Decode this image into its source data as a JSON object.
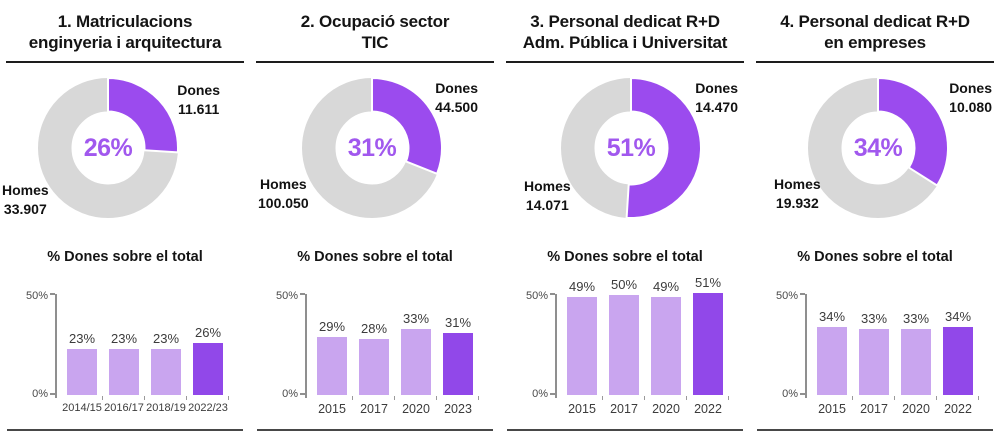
{
  "colors": {
    "donut_dones": "#9b4bee",
    "donut_homes": "#d8d8d8",
    "bar_light": "#c9a5ef",
    "bar_accent": "#9148e9",
    "percent_text": "#a158ee"
  },
  "columns": [
    {
      "title_line1": "1. Matriculacions",
      "title_line2": "enginyeria i arquitectura",
      "donut": {
        "percent": 26,
        "percent_label": "26%",
        "dones_label": "Dones",
        "dones_value": "11.611",
        "homes_label": "Homes",
        "homes_value": "33.907"
      },
      "bar_chart": {
        "title": "% Dones sobre el total",
        "y_max_label": "50%",
        "y_min_label": "0%",
        "categories": [
          "2014/15",
          "2016/17",
          "2018/19",
          "2022/23"
        ],
        "values": [
          23,
          23,
          23,
          26
        ],
        "labels": [
          "23%",
          "23%",
          "23%",
          "26%"
        ]
      }
    },
    {
      "title_line1": "2. Ocupació sector",
      "title_line2": "TIC",
      "donut": {
        "percent": 31,
        "percent_label": "31%",
        "dones_label": "Dones",
        "dones_value": "44.500",
        "homes_label": "Homes",
        "homes_value": "100.050"
      },
      "bar_chart": {
        "title": "% Dones sobre el total",
        "y_max_label": "50%",
        "y_min_label": "0%",
        "categories": [
          "2015",
          "2017",
          "2020",
          "2023"
        ],
        "values": [
          29,
          28,
          33,
          31
        ],
        "labels": [
          "29%",
          "28%",
          "33%",
          "31%"
        ]
      }
    },
    {
      "title_line1": "3. Personal dedicat R+D",
      "title_line2": "Adm. Pública i Universitat",
      "donut": {
        "percent": 51,
        "percent_label": "51%",
        "dones_label": "Dones",
        "dones_value": "14.470",
        "homes_label": "Homes",
        "homes_value": "14.071"
      },
      "bar_chart": {
        "title": "% Dones sobre el total",
        "y_max_label": "50%",
        "y_min_label": "0%",
        "categories": [
          "2015",
          "2017",
          "2020",
          "2022"
        ],
        "values": [
          49,
          50,
          49,
          51
        ],
        "labels": [
          "49%",
          "50%",
          "49%",
          "51%"
        ]
      }
    },
    {
      "title_line1": "4. Personal dedicat R+D",
      "title_line2": "en empreses",
      "donut": {
        "percent": 34,
        "percent_label": "34%",
        "dones_label": "Dones",
        "dones_value": "10.080",
        "homes_label": "Homes",
        "homes_value": "19.932"
      },
      "bar_chart": {
        "title": "% Dones sobre el total",
        "y_max_label": "50%",
        "y_min_label": "0%",
        "categories": [
          "2015",
          "2017",
          "2020",
          "2022"
        ],
        "values": [
          34,
          33,
          33,
          34
        ],
        "labels": [
          "34%",
          "33%",
          "33%",
          "34%"
        ]
      }
    }
  ],
  "chart_data": [
    {
      "type": "pie",
      "title": "1. Matriculacions enginyeria i arquitectura",
      "labels": [
        "Dones",
        "Homes"
      ],
      "values": [
        11611,
        33907
      ],
      "center_label": "26%",
      "donut": true
    },
    {
      "type": "bar",
      "title": "% Dones sobre el total",
      "categories": [
        "2014/15",
        "2016/17",
        "2018/19",
        "2022/23"
      ],
      "values": [
        23,
        23,
        23,
        26
      ],
      "xlabel": "",
      "ylabel": "% Dones",
      "ylim": [
        0,
        50
      ]
    },
    {
      "type": "pie",
      "title": "2. Ocupació sector TIC",
      "labels": [
        "Dones",
        "Homes"
      ],
      "values": [
        44500,
        100050
      ],
      "center_label": "31%",
      "donut": true
    },
    {
      "type": "bar",
      "title": "% Dones sobre el total",
      "categories": [
        "2015",
        "2017",
        "2020",
        "2023"
      ],
      "values": [
        29,
        28,
        33,
        31
      ],
      "xlabel": "",
      "ylabel": "% Dones",
      "ylim": [
        0,
        50
      ]
    },
    {
      "type": "pie",
      "title": "3. Personal dedicat R+D Adm. Pública i Universitat",
      "labels": [
        "Dones",
        "Homes"
      ],
      "values": [
        14470,
        14071
      ],
      "center_label": "51%",
      "donut": true
    },
    {
      "type": "bar",
      "title": "% Dones sobre el total",
      "categories": [
        "2015",
        "2017",
        "2020",
        "2022"
      ],
      "values": [
        49,
        50,
        49,
        51
      ],
      "xlabel": "",
      "ylabel": "% Dones",
      "ylim": [
        0,
        50
      ]
    },
    {
      "type": "pie",
      "title": "4. Personal dedicat R+D en empreses",
      "labels": [
        "Dones",
        "Homes"
      ],
      "values": [
        10080,
        19932
      ],
      "center_label": "34%",
      "donut": true
    },
    {
      "type": "bar",
      "title": "% Dones sobre el total",
      "categories": [
        "2015",
        "2017",
        "2020",
        "2022"
      ],
      "values": [
        34,
        33,
        33,
        34
      ],
      "xlabel": "",
      "ylabel": "% Dones",
      "ylim": [
        0,
        50
      ]
    }
  ]
}
